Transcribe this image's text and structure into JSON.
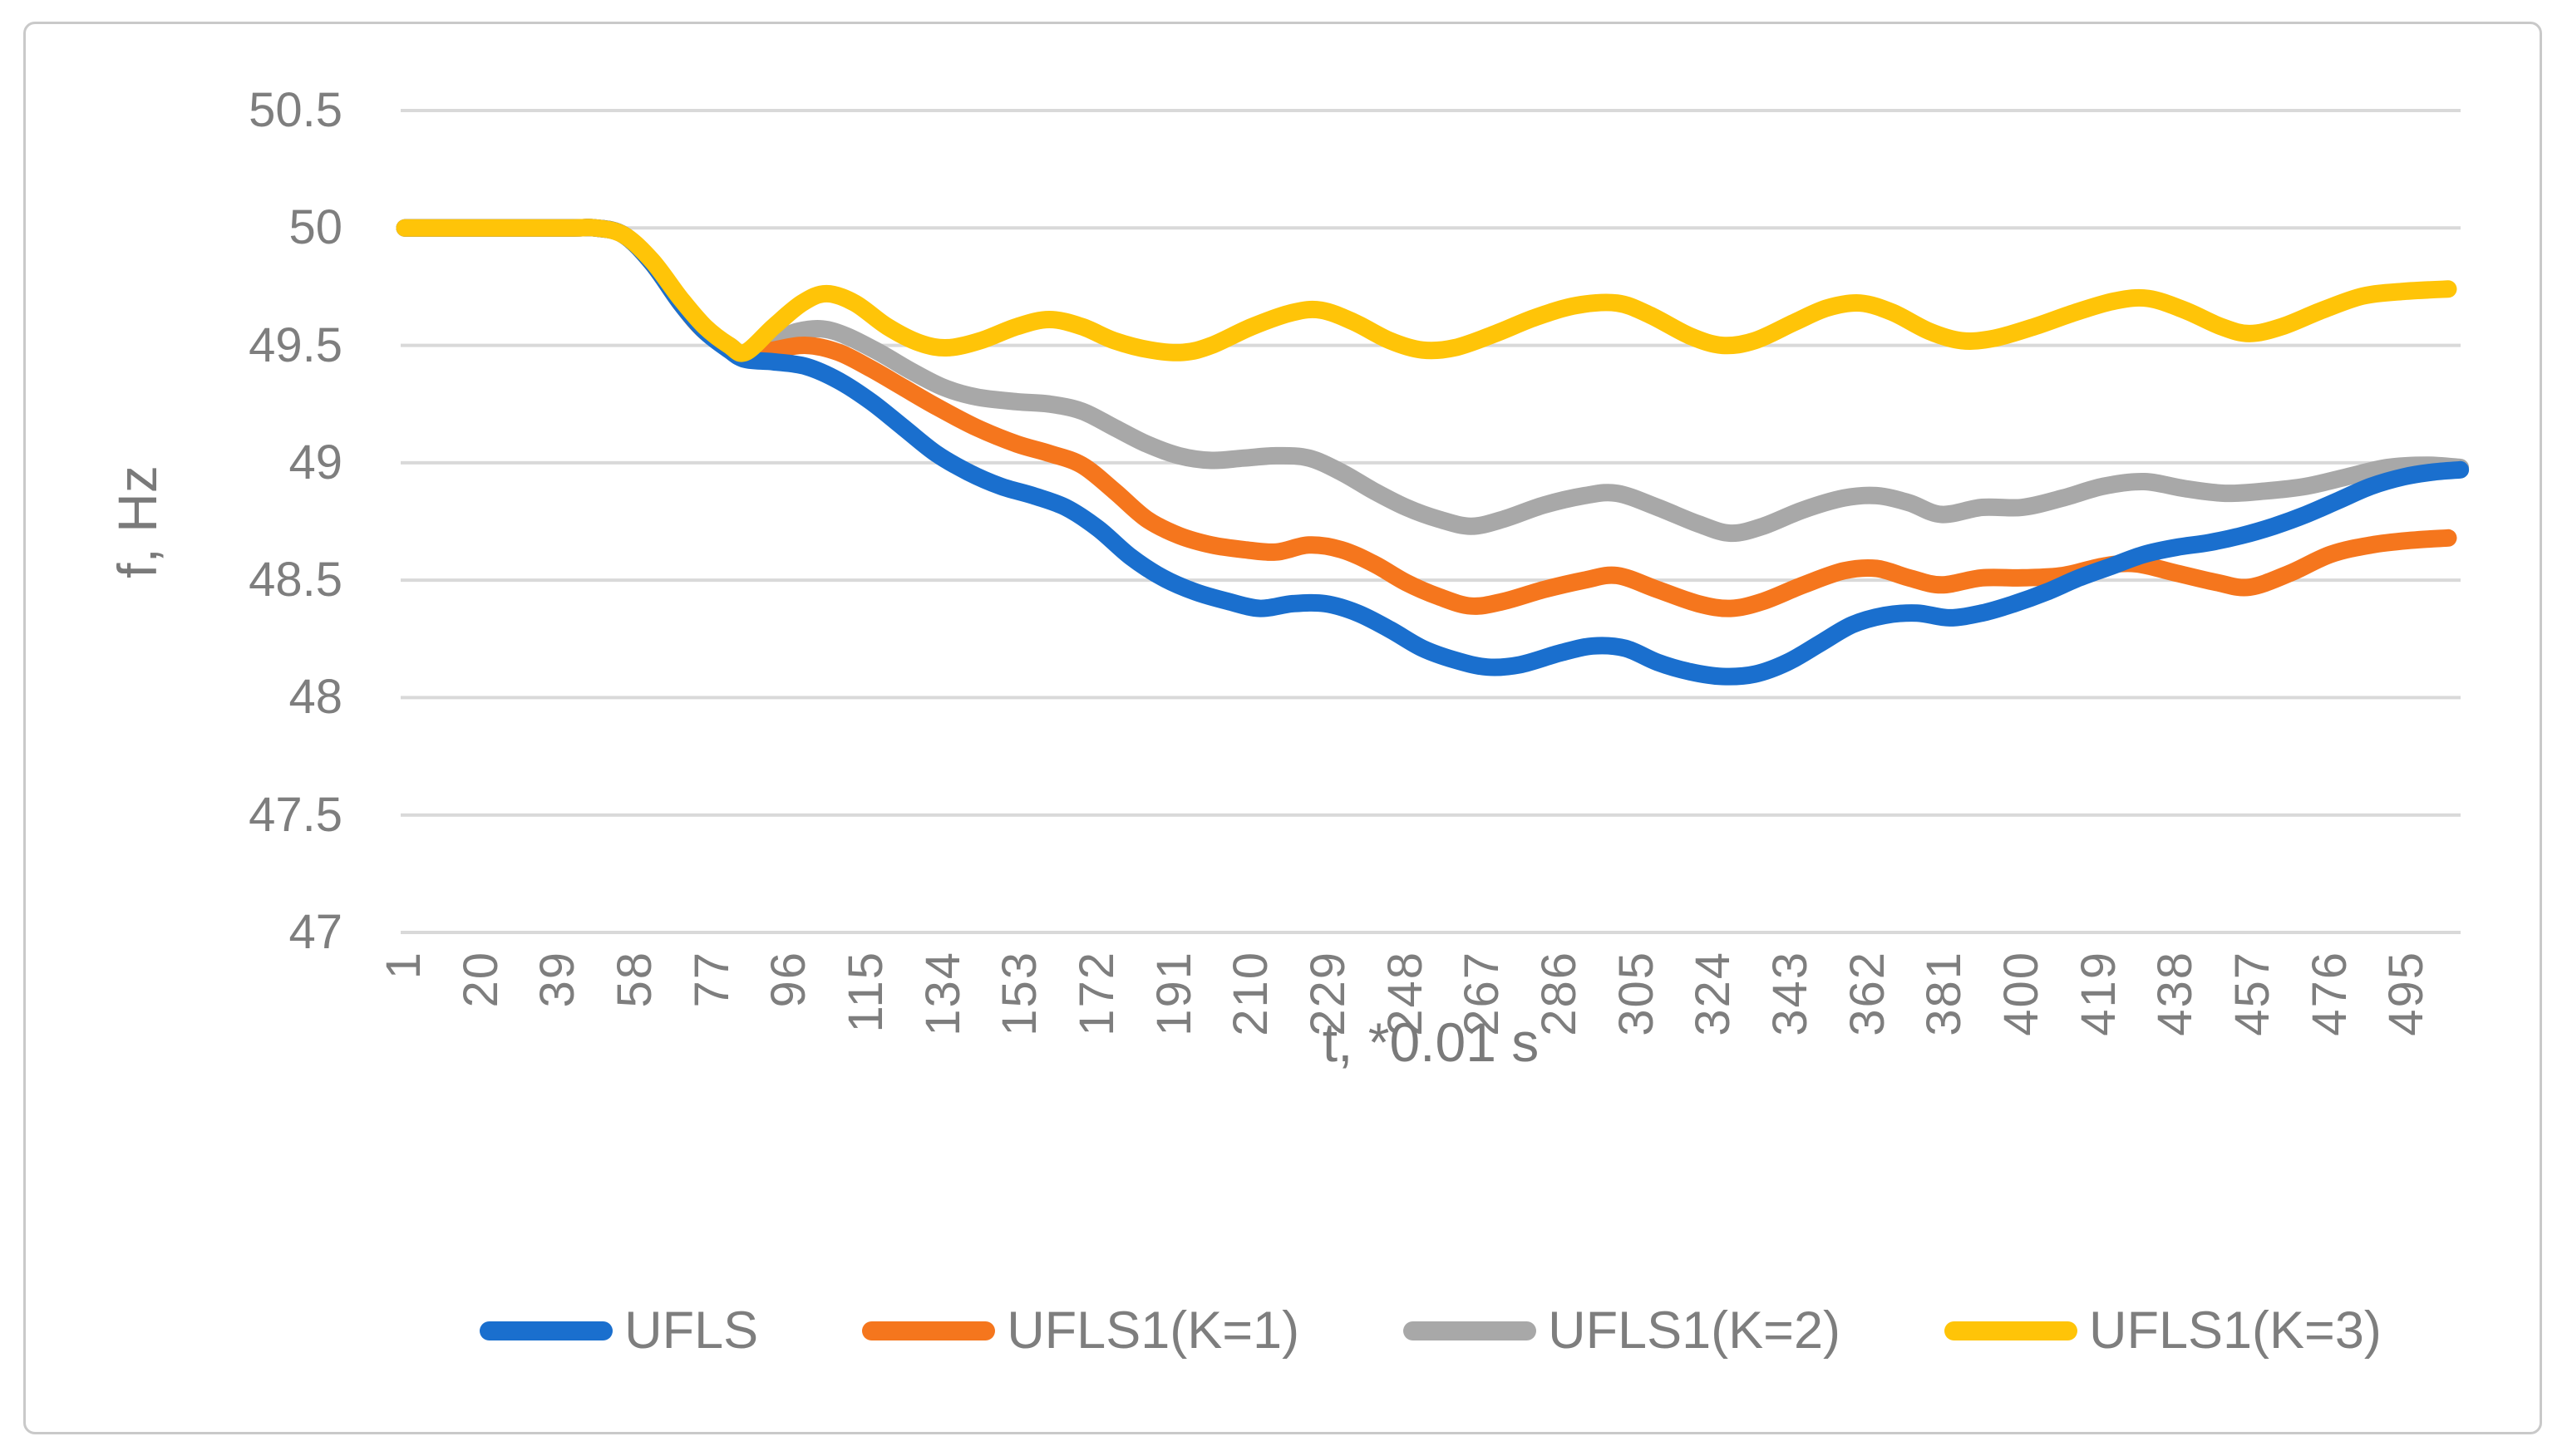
{
  "colors": {
    "grid": "#d9d9d9",
    "axis_text": "#7e7e7e",
    "frame_border": "#c9c9c9",
    "background": "#ffffff"
  },
  "chart_data": {
    "type": "line",
    "title": "",
    "xlabel": "t, *0.01 s",
    "ylabel": "f, Hz",
    "ylim": [
      47,
      50.5
    ],
    "ytick_step": 0.5,
    "ytick_labels": [
      "50.5",
      "50",
      "49.5",
      "49",
      "48.5",
      "48",
      "47.5",
      "47"
    ],
    "xtick_labels": [
      "1",
      "20",
      "39",
      "58",
      "77",
      "96",
      "115",
      "134",
      "153",
      "172",
      "191",
      "210",
      "229",
      "248",
      "267",
      "286",
      "305",
      "324",
      "343",
      "362",
      "381",
      "400",
      "419",
      "438",
      "457",
      "476",
      "495"
    ],
    "x_first": 1,
    "x_tick_step": 19,
    "x_last_point": 508,
    "grid": true,
    "legend_position": "bottom",
    "line_smoothing": true,
    "series": [
      {
        "name": "UFLS",
        "color": "#1a6fce",
        "points": [
          [
            1,
            50
          ],
          [
            40,
            50
          ],
          [
            48,
            50
          ],
          [
            55,
            49.97
          ],
          [
            62,
            49.85
          ],
          [
            69,
            49.68
          ],
          [
            75,
            49.56
          ],
          [
            81,
            49.48
          ],
          [
            85,
            49.44
          ],
          [
            92,
            49.43
          ],
          [
            100,
            49.41
          ],
          [
            108,
            49.35
          ],
          [
            116,
            49.26
          ],
          [
            124,
            49.15
          ],
          [
            132,
            49.04
          ],
          [
            140,
            48.96
          ],
          [
            148,
            48.9
          ],
          [
            156,
            48.86
          ],
          [
            164,
            48.81
          ],
          [
            172,
            48.72
          ],
          [
            180,
            48.6
          ],
          [
            188,
            48.51
          ],
          [
            196,
            48.45
          ],
          [
            204,
            48.41
          ],
          [
            212,
            48.38
          ],
          [
            220,
            48.4
          ],
          [
            228,
            48.4
          ],
          [
            236,
            48.36
          ],
          [
            244,
            48.29
          ],
          [
            252,
            48.21
          ],
          [
            260,
            48.16
          ],
          [
            268,
            48.13
          ],
          [
            276,
            48.14
          ],
          [
            286,
            48.19
          ],
          [
            294,
            48.22
          ],
          [
            302,
            48.21
          ],
          [
            310,
            48.15
          ],
          [
            318,
            48.11
          ],
          [
            326,
            48.09
          ],
          [
            334,
            48.1
          ],
          [
            342,
            48.15
          ],
          [
            350,
            48.23
          ],
          [
            358,
            48.31
          ],
          [
            366,
            48.35
          ],
          [
            374,
            48.36
          ],
          [
            382,
            48.34
          ],
          [
            390,
            48.36
          ],
          [
            398,
            48.4
          ],
          [
            406,
            48.45
          ],
          [
            414,
            48.51
          ],
          [
            422,
            48.56
          ],
          [
            430,
            48.61
          ],
          [
            438,
            48.64
          ],
          [
            446,
            48.66
          ],
          [
            454,
            48.69
          ],
          [
            462,
            48.73
          ],
          [
            470,
            48.78
          ],
          [
            478,
            48.84
          ],
          [
            486,
            48.9
          ],
          [
            494,
            48.94
          ],
          [
            501,
            48.96
          ],
          [
            508,
            48.97
          ]
        ]
      },
      {
        "name": "UFLS1(K=1)",
        "color": "#f5761d",
        "points": [
          [
            1,
            50
          ],
          [
            40,
            50
          ],
          [
            48,
            50
          ],
          [
            55,
            49.97
          ],
          [
            62,
            49.85
          ],
          [
            69,
            49.68
          ],
          [
            75,
            49.56
          ],
          [
            81,
            49.49
          ],
          [
            85,
            49.45
          ],
          [
            92,
            49.48
          ],
          [
            100,
            49.5
          ],
          [
            108,
            49.47
          ],
          [
            116,
            49.4
          ],
          [
            124,
            49.32
          ],
          [
            132,
            49.24
          ],
          [
            142,
            49.15
          ],
          [
            152,
            49.08
          ],
          [
            160,
            49.04
          ],
          [
            168,
            48.99
          ],
          [
            176,
            48.88
          ],
          [
            184,
            48.76
          ],
          [
            192,
            48.69
          ],
          [
            200,
            48.65
          ],
          [
            208,
            48.63
          ],
          [
            216,
            48.62
          ],
          [
            224,
            48.65
          ],
          [
            232,
            48.63
          ],
          [
            240,
            48.57
          ],
          [
            248,
            48.49
          ],
          [
            256,
            48.43
          ],
          [
            264,
            48.39
          ],
          [
            272,
            48.41
          ],
          [
            282,
            48.46
          ],
          [
            292,
            48.5
          ],
          [
            300,
            48.52
          ],
          [
            310,
            48.46
          ],
          [
            320,
            48.4
          ],
          [
            328,
            48.38
          ],
          [
            336,
            48.41
          ],
          [
            346,
            48.48
          ],
          [
            356,
            48.54
          ],
          [
            364,
            48.55
          ],
          [
            372,
            48.51
          ],
          [
            380,
            48.48
          ],
          [
            390,
            48.51
          ],
          [
            400,
            48.51
          ],
          [
            410,
            48.52
          ],
          [
            420,
            48.56
          ],
          [
            428,
            48.57
          ],
          [
            438,
            48.53
          ],
          [
            448,
            48.49
          ],
          [
            456,
            48.47
          ],
          [
            466,
            48.53
          ],
          [
            476,
            48.61
          ],
          [
            486,
            48.65
          ],
          [
            496,
            48.67
          ],
          [
            505,
            48.68
          ]
        ]
      },
      {
        "name": "UFLS1(K=2)",
        "color": "#a8a8a8",
        "points": [
          [
            1,
            50
          ],
          [
            40,
            50
          ],
          [
            48,
            50
          ],
          [
            55,
            49.97
          ],
          [
            62,
            49.85
          ],
          [
            69,
            49.68
          ],
          [
            75,
            49.56
          ],
          [
            81,
            49.5
          ],
          [
            85,
            49.46
          ],
          [
            92,
            49.52
          ],
          [
            98,
            49.56
          ],
          [
            104,
            49.57
          ],
          [
            110,
            49.54
          ],
          [
            118,
            49.47
          ],
          [
            126,
            49.39
          ],
          [
            134,
            49.32
          ],
          [
            142,
            49.28
          ],
          [
            152,
            49.26
          ],
          [
            160,
            49.25
          ],
          [
            168,
            49.22
          ],
          [
            176,
            49.15
          ],
          [
            184,
            49.08
          ],
          [
            192,
            49.03
          ],
          [
            200,
            49.01
          ],
          [
            208,
            49.02
          ],
          [
            216,
            49.03
          ],
          [
            224,
            49.02
          ],
          [
            232,
            48.96
          ],
          [
            240,
            48.88
          ],
          [
            248,
            48.81
          ],
          [
            256,
            48.76
          ],
          [
            264,
            48.73
          ],
          [
            272,
            48.76
          ],
          [
            282,
            48.82
          ],
          [
            292,
            48.86
          ],
          [
            300,
            48.87
          ],
          [
            310,
            48.81
          ],
          [
            320,
            48.74
          ],
          [
            328,
            48.7
          ],
          [
            336,
            48.73
          ],
          [
            346,
            48.8
          ],
          [
            356,
            48.85
          ],
          [
            364,
            48.86
          ],
          [
            372,
            48.83
          ],
          [
            380,
            48.78
          ],
          [
            390,
            48.81
          ],
          [
            400,
            48.81
          ],
          [
            410,
            48.85
          ],
          [
            420,
            48.9
          ],
          [
            430,
            48.92
          ],
          [
            440,
            48.89
          ],
          [
            450,
            48.87
          ],
          [
            460,
            48.88
          ],
          [
            470,
            48.9
          ],
          [
            480,
            48.94
          ],
          [
            490,
            48.98
          ],
          [
            500,
            48.99
          ],
          [
            508,
            48.98
          ]
        ]
      },
      {
        "name": "UFLS1(K=3)",
        "color": "#ffc408",
        "points": [
          [
            1,
            50
          ],
          [
            40,
            50
          ],
          [
            48,
            50
          ],
          [
            55,
            49.97
          ],
          [
            62,
            49.86
          ],
          [
            69,
            49.7
          ],
          [
            75,
            49.58
          ],
          [
            81,
            49.5
          ],
          [
            85,
            49.47
          ],
          [
            92,
            49.58
          ],
          [
            99,
            49.68
          ],
          [
            105,
            49.72
          ],
          [
            112,
            49.68
          ],
          [
            120,
            49.58
          ],
          [
            128,
            49.51
          ],
          [
            135,
            49.49
          ],
          [
            143,
            49.52
          ],
          [
            152,
            49.58
          ],
          [
            160,
            49.61
          ],
          [
            168,
            49.58
          ],
          [
            176,
            49.52
          ],
          [
            185,
            49.48
          ],
          [
            193,
            49.47
          ],
          [
            200,
            49.5
          ],
          [
            210,
            49.58
          ],
          [
            220,
            49.64
          ],
          [
            227,
            49.65
          ],
          [
            235,
            49.6
          ],
          [
            244,
            49.52
          ],
          [
            252,
            49.48
          ],
          [
            260,
            49.49
          ],
          [
            270,
            49.55
          ],
          [
            280,
            49.62
          ],
          [
            290,
            49.67
          ],
          [
            300,
            49.68
          ],
          [
            308,
            49.63
          ],
          [
            318,
            49.54
          ],
          [
            326,
            49.5
          ],
          [
            334,
            49.52
          ],
          [
            344,
            49.6
          ],
          [
            352,
            49.66
          ],
          [
            360,
            49.68
          ],
          [
            368,
            49.64
          ],
          [
            377,
            49.56
          ],
          [
            385,
            49.52
          ],
          [
            393,
            49.53
          ],
          [
            403,
            49.58
          ],
          [
            413,
            49.64
          ],
          [
            423,
            49.69
          ],
          [
            431,
            49.7
          ],
          [
            440,
            49.65
          ],
          [
            449,
            49.58
          ],
          [
            456,
            49.55
          ],
          [
            464,
            49.58
          ],
          [
            474,
            49.65
          ],
          [
            484,
            49.71
          ],
          [
            494,
            49.73
          ],
          [
            505,
            49.74
          ]
        ]
      }
    ],
    "draw_order": [
      2,
      1,
      0,
      3
    ]
  }
}
